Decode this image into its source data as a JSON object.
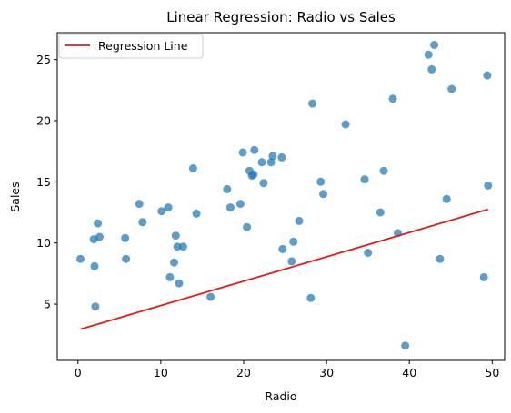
{
  "chart_data": {
    "type": "scatter",
    "title": "Linear Regression: Radio vs Sales",
    "xlabel": "Radio",
    "ylabel": "Sales",
    "xlim": [
      -2.5,
      51.5
    ],
    "ylim": [
      0.4,
      27.2
    ],
    "xticks": [
      0,
      10,
      20,
      30,
      40,
      50
    ],
    "yticks": [
      5,
      10,
      15,
      20,
      25
    ],
    "grid": false,
    "legend": {
      "placement": "top-left",
      "entries": [
        "Regression Line"
      ]
    },
    "points_color": "#1f77b4",
    "line_color": "#e41a1c",
    "series": [
      {
        "kind": "scatter",
        "x": [
          0.3,
          1.9,
          2.0,
          2.1,
          2.4,
          2.6,
          5.7,
          5.8,
          7.4,
          7.8,
          10.1,
          10.9,
          11.1,
          11.6,
          11.8,
          12.0,
          12.2,
          12.7,
          13.9,
          14.3,
          16.0,
          18.0,
          18.4,
          19.6,
          19.9,
          20.4,
          20.7,
          21.0,
          21.2,
          21.3,
          22.2,
          22.4,
          23.3,
          23.5,
          24.6,
          24.7,
          25.8,
          26.0,
          26.7,
          28.1,
          28.3,
          29.3,
          29.6,
          32.3,
          34.6,
          35.0,
          36.5,
          36.9,
          38.0,
          38.6,
          39.5,
          42.3,
          42.7,
          43.0,
          43.7,
          44.5,
          45.1,
          49.0,
          49.4,
          49.5
        ],
        "y": [
          8.7,
          10.3,
          8.1,
          4.8,
          11.6,
          10.5,
          10.4,
          8.7,
          13.2,
          11.7,
          12.6,
          12.9,
          7.2,
          8.4,
          10.6,
          9.7,
          6.7,
          9.7,
          16.1,
          12.4,
          5.6,
          14.4,
          12.9,
          13.2,
          17.4,
          11.3,
          15.9,
          15.5,
          15.6,
          17.6,
          16.6,
          14.9,
          16.6,
          17.1,
          17.0,
          9.5,
          8.5,
          10.1,
          11.8,
          5.5,
          21.4,
          15.0,
          14.0,
          19.7,
          15.2,
          9.2,
          12.5,
          15.9,
          21.8,
          10.8,
          1.6,
          25.4,
          24.2,
          26.2,
          8.7,
          13.6,
          22.6,
          7.2,
          23.7,
          14.7
        ]
      },
      {
        "kind": "line",
        "name": "Regression Line",
        "x": [
          0.3,
          49.5
        ],
        "y": [
          2.95,
          12.75
        ]
      }
    ]
  }
}
